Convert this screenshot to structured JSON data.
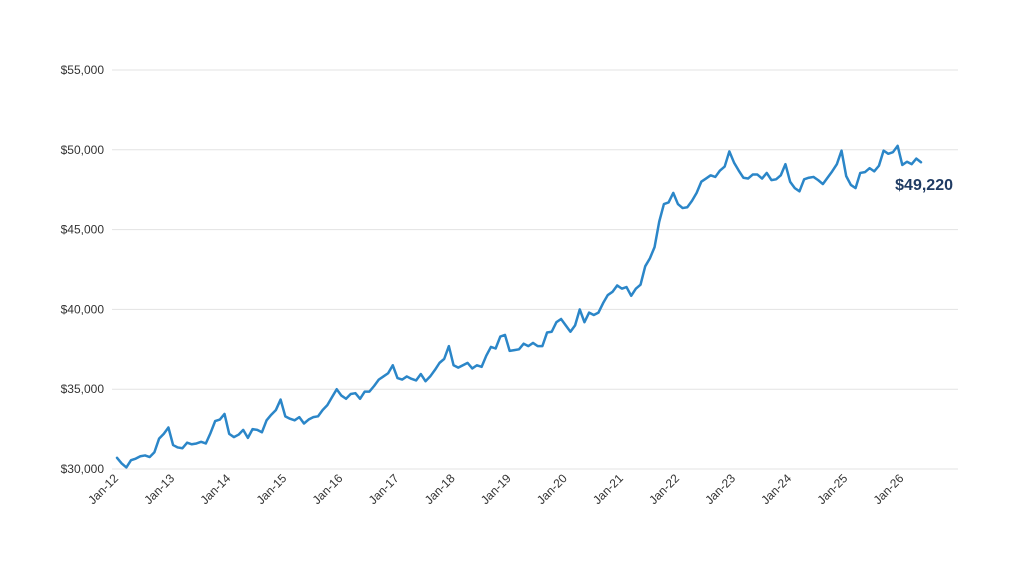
{
  "chart_data": {
    "type": "line",
    "categories": [
      "Jan-12",
      null,
      null,
      null,
      null,
      null,
      null,
      null,
      null,
      null,
      null,
      null,
      "Jan-13",
      null,
      null,
      null,
      null,
      null,
      null,
      null,
      null,
      null,
      null,
      null,
      "Jan-14",
      null,
      null,
      null,
      null,
      null,
      null,
      null,
      null,
      null,
      null,
      null,
      "Jan-15",
      null,
      null,
      null,
      null,
      null,
      null,
      null,
      null,
      null,
      null,
      null,
      "Jan-16",
      null,
      null,
      null,
      null,
      null,
      null,
      null,
      null,
      null,
      null,
      null,
      "Jan-17",
      null,
      null,
      null,
      null,
      null,
      null,
      null,
      null,
      null,
      null,
      null,
      "Jan-18",
      null,
      null,
      null,
      null,
      null,
      null,
      null,
      null,
      null,
      null,
      null,
      "Jan-19",
      null,
      null,
      null,
      null,
      null,
      null,
      null,
      null,
      null,
      null,
      null,
      "Jan-20",
      null,
      null,
      null,
      null,
      null,
      null,
      null,
      null,
      null,
      null,
      null,
      "Jan-21",
      null,
      null,
      null,
      null,
      null,
      null,
      null,
      null,
      null,
      null,
      null,
      "Jan-22",
      null,
      null,
      null,
      null,
      null,
      null,
      null,
      null,
      null,
      null,
      null,
      "Jan-23",
      null,
      null,
      null,
      null,
      null,
      null,
      null,
      null,
      null,
      null,
      null,
      "Jan-24",
      null,
      null,
      null,
      null,
      null,
      null,
      null,
      null,
      null,
      null,
      null,
      "Jan-25",
      null,
      null,
      null,
      null,
      null,
      null,
      null,
      null,
      null,
      null,
      null,
      "Jan-26",
      null,
      null,
      null,
      null
    ],
    "series": [
      {
        "color": "#2b86c8",
        "values": [
          30700,
          30350,
          30100,
          30550,
          30650,
          30800,
          30850,
          30750,
          31050,
          31900,
          32200,
          32600,
          31500,
          31350,
          31300,
          31650,
          31550,
          31600,
          31700,
          31600,
          32250,
          33000,
          33100,
          33450,
          32200,
          32000,
          32150,
          32450,
          31950,
          32500,
          32450,
          32300,
          33050,
          33400,
          33700,
          34350,
          33300,
          33150,
          33050,
          33250,
          32850,
          33100,
          33250,
          33300,
          33700,
          34000,
          34500,
          35000,
          34600,
          34400,
          34700,
          34750,
          34400,
          34850,
          34850,
          35200,
          35600,
          35800,
          36000,
          36500,
          35700,
          35600,
          35800,
          35650,
          35550,
          35950,
          35500,
          35800,
          36200,
          36650,
          36900,
          37700,
          36500,
          36350,
          36500,
          36650,
          36300,
          36500,
          36400,
          37100,
          37650,
          37550,
          38300,
          38400,
          37400,
          37450,
          37500,
          37850,
          37700,
          37900,
          37700,
          37700,
          38550,
          38600,
          39200,
          39400,
          39000,
          38600,
          39000,
          40000,
          39200,
          39800,
          39650,
          39800,
          40400,
          40900,
          41100,
          41500,
          41300,
          41400,
          40850,
          41300,
          41550,
          42700,
          43200,
          43900,
          45500,
          46600,
          46700,
          47300,
          46600,
          46350,
          46400,
          46800,
          47300,
          48000,
          48200,
          48400,
          48300,
          48700,
          48950,
          49900,
          49200,
          48700,
          48250,
          48200,
          48450,
          48450,
          48200,
          48550,
          48100,
          48150,
          48400,
          49100,
          48000,
          47600,
          47400,
          48150,
          48250,
          48300,
          48100,
          47850,
          48250,
          48650,
          49100,
          49950,
          48350,
          47800,
          47600,
          48550,
          48600,
          48850,
          48650,
          49000,
          49950,
          49750,
          49850,
          50250,
          49050,
          49250,
          49100,
          49450,
          49220
        ]
      }
    ],
    "end_label": "$49,220",
    "end_label_color": "#1f3b63",
    "ylim": [
      30000,
      55000
    ],
    "yticks": [
      {
        "value": 30000,
        "label": "$30,000"
      },
      {
        "value": 35000,
        "label": "$35,000"
      },
      {
        "value": 40000,
        "label": "$40,000"
      },
      {
        "value": 45000,
        "label": "$45,000"
      },
      {
        "value": 50000,
        "label": "$50,000"
      },
      {
        "value": 55000,
        "label": "$55,000"
      }
    ],
    "grid": true
  }
}
